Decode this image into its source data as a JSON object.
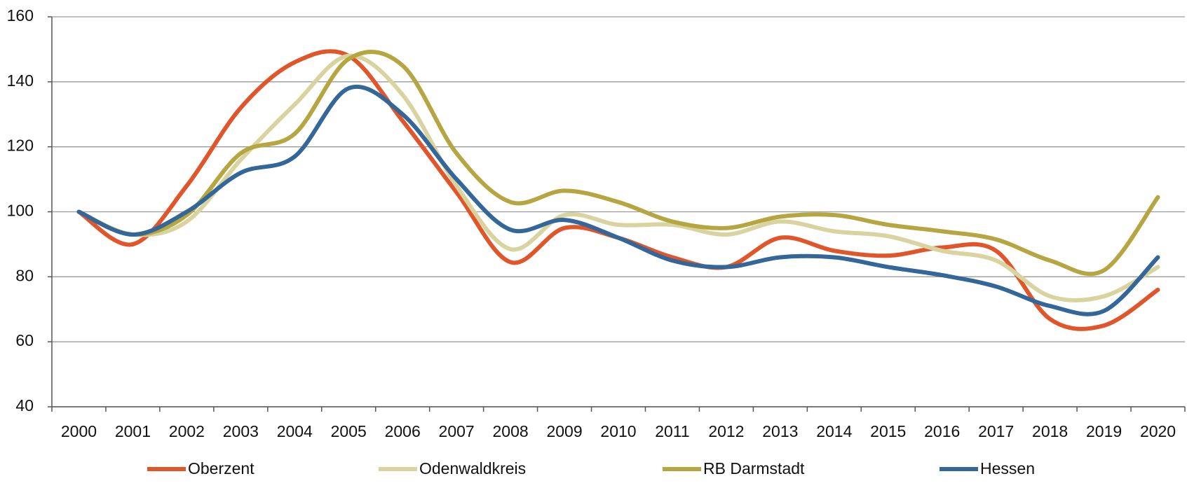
{
  "chart_data": {
    "type": "line",
    "categories": [
      "2000",
      "2001",
      "2002",
      "2003",
      "2004",
      "2005",
      "2006",
      "2007",
      "2008",
      "2009",
      "2010",
      "2011",
      "2012",
      "2013",
      "2014",
      "2015",
      "2016",
      "2017",
      "2018",
      "2019",
      "2020"
    ],
    "series": [
      {
        "name": "Oberzent",
        "color": "#e0552a",
        "values": [
          100,
          90,
          108,
          132,
          146,
          148,
          128,
          106,
          84.5,
          95,
          92,
          86,
          83,
          92,
          88,
          86.5,
          89,
          88,
          67,
          65,
          76
        ]
      },
      {
        "name": "Odenwaldkreis",
        "color": "#d9d3a0",
        "values": [
          100,
          93,
          97,
          116,
          133,
          148,
          136,
          108,
          88.5,
          99,
          96,
          96,
          93,
          97,
          94,
          92.5,
          88,
          85,
          74,
          74,
          83
        ]
      },
      {
        "name": "RB Darmstadt",
        "color": "#b5a642",
        "values": [
          100,
          93,
          99,
          118,
          124,
          147,
          145,
          118,
          103,
          106.5,
          103,
          97,
          95,
          98.5,
          99,
          96,
          94,
          91.5,
          85,
          82,
          104.5
        ]
      },
      {
        "name": "Hessen",
        "color": "#336699",
        "values": [
          100,
          93,
          100,
          112,
          117,
          138,
          130,
          110,
          94.5,
          97.5,
          92,
          85,
          83,
          86,
          86,
          83,
          80.5,
          77,
          71,
          69.5,
          86
        ]
      }
    ],
    "ylim": [
      40,
      160
    ],
    "yticks": [
      40,
      60,
      80,
      100,
      120,
      140,
      160
    ],
    "grid": true,
    "legend": "bottom"
  }
}
